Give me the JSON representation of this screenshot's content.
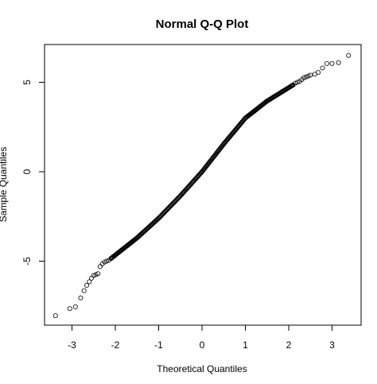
{
  "chart_data": {
    "type": "scatter",
    "title": "Normal Q-Q Plot",
    "xlabel": "Theoretical Quantiles",
    "ylabel": "Sample Quantiles",
    "xlim": [
      -3.6,
      3.6
    ],
    "ylim": [
      -8.6,
      7.2
    ],
    "x_ticks": [
      -3,
      -2,
      -1,
      0,
      1,
      2,
      3
    ],
    "y_ticks": [
      -5,
      0,
      5
    ],
    "grid": false,
    "points": [
      {
        "x": -3.38,
        "y": -8.05
      },
      {
        "x": -3.05,
        "y": -7.65
      },
      {
        "x": -2.92,
        "y": -7.55
      },
      {
        "x": -2.8,
        "y": -7.05
      },
      {
        "x": -2.72,
        "y": -6.65
      },
      {
        "x": -2.66,
        "y": -6.35
      },
      {
        "x": -2.6,
        "y": -6.15
      },
      {
        "x": -2.55,
        "y": -5.95
      },
      {
        "x": -2.5,
        "y": -5.8
      },
      {
        "x": -2.45,
        "y": -5.75
      },
      {
        "x": -2.4,
        "y": -5.7
      },
      {
        "x": -2.35,
        "y": -5.3
      },
      {
        "x": -2.3,
        "y": -5.15
      },
      {
        "x": -2.25,
        "y": -5.05
      },
      {
        "x": -2.2,
        "y": -5.0
      },
      {
        "x": -2.15,
        "y": -4.95
      },
      {
        "x": -2.1,
        "y": -4.85
      },
      {
        "x": 2.1,
        "y": 4.85
      },
      {
        "x": 2.15,
        "y": 4.95
      },
      {
        "x": 2.2,
        "y": 5.0
      },
      {
        "x": 2.25,
        "y": 5.05
      },
      {
        "x": 2.3,
        "y": 5.15
      },
      {
        "x": 2.35,
        "y": 5.25
      },
      {
        "x": 2.4,
        "y": 5.3
      },
      {
        "x": 2.45,
        "y": 5.35
      },
      {
        "x": 2.5,
        "y": 5.4
      },
      {
        "x": 2.6,
        "y": 5.45
      },
      {
        "x": 2.68,
        "y": 5.55
      },
      {
        "x": 2.78,
        "y": 5.8
      },
      {
        "x": 2.88,
        "y": 6.05
      },
      {
        "x": 3.0,
        "y": 6.05
      },
      {
        "x": 3.15,
        "y": 6.1
      },
      {
        "x": 3.38,
        "y": 6.5
      }
    ],
    "dense_region": {
      "x_range": [
        -2.1,
        2.1
      ],
      "y_at_x": [
        {
          "x": -2.1,
          "y": -4.85
        },
        {
          "x": -1.5,
          "y": -3.7
        },
        {
          "x": -1.0,
          "y": -2.6
        },
        {
          "x": -0.5,
          "y": -1.35
        },
        {
          "x": 0.0,
          "y": 0.0
        },
        {
          "x": 0.5,
          "y": 1.55
        },
        {
          "x": 1.0,
          "y": 3.0
        },
        {
          "x": 1.5,
          "y": 3.95
        },
        {
          "x": 2.1,
          "y": 4.85
        }
      ]
    }
  }
}
